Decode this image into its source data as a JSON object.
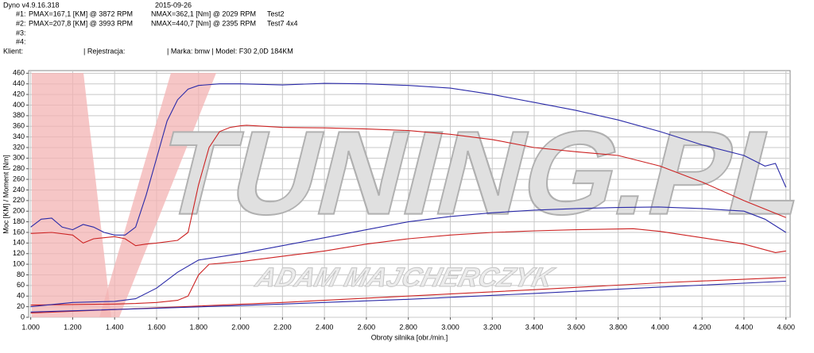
{
  "chart_data": {
    "type": "line",
    "header": {
      "app": "Dyno v4.9.16.318",
      "date": "2015-09-26",
      "runs": [
        {
          "id": "#1:",
          "pmax": "PMAX=167,1 [KM] @ 3872 RPM",
          "nmax": "NMAX=362,1 [Nm] @ 2029 RPM",
          "name": "Test2"
        },
        {
          "id": "#2:",
          "pmax": "PMAX=207,8 [KM] @ 3993 RPM",
          "nmax": "NMAX=440,7 [Nm] @ 2395 RPM",
          "name": "Test7  4x4"
        },
        {
          "id": "#3:"
        },
        {
          "id": "#4:"
        }
      ],
      "client": "Klient:",
      "registration": "| Rejestracja:",
      "vehicle": "| Marka:  bmw | Model:  F30 2,0D 184KM"
    },
    "watermark": "TUNING.PL",
    "watermark_sub": "ADAM MAJCHERCZYK",
    "x_label": "Obroty silnika [obr./min.]",
    "y_label": "Moc [KM] / Moment [Nm]",
    "xlim": [
      990,
      4620
    ],
    "ylim": [
      0,
      465
    ],
    "grid": true,
    "xticks": [
      {
        "value": 1000,
        "label": "1.000"
      },
      {
        "value": 1200,
        "label": "1.200"
      },
      {
        "value": 1400,
        "label": "1.400"
      },
      {
        "value": 1600,
        "label": "1.600"
      },
      {
        "value": 1800,
        "label": "1.800"
      },
      {
        "value": 2000,
        "label": "2.000"
      },
      {
        "value": 2200,
        "label": "2.200"
      },
      {
        "value": 2400,
        "label": "2.400"
      },
      {
        "value": 2600,
        "label": "2.600"
      },
      {
        "value": 2800,
        "label": "2.800"
      },
      {
        "value": 3000,
        "label": "3.000"
      },
      {
        "value": 3200,
        "label": "3.200"
      },
      {
        "value": 3400,
        "label": "3.400"
      },
      {
        "value": 3600,
        "label": "3.600"
      },
      {
        "value": 3800,
        "label": "3.800"
      },
      {
        "value": 4000,
        "label": "4.000"
      },
      {
        "value": 4200,
        "label": "4.200"
      },
      {
        "value": 4400,
        "label": "4.400"
      },
      {
        "value": 4600,
        "label": "4.600"
      }
    ],
    "yticks": [
      0,
      20,
      40,
      60,
      80,
      100,
      120,
      140,
      160,
      180,
      200,
      220,
      240,
      260,
      280,
      300,
      320,
      340,
      360,
      380,
      400,
      420,
      440,
      460
    ],
    "series": [
      {
        "color": "#cc2222",
        "x": [
          1000,
          1100,
          1200,
          1250,
          1300,
          1400,
          1450,
          1500,
          1550,
          1600,
          1700,
          1750,
          1800,
          1850,
          1900,
          1950,
          2000,
          2029,
          2200,
          2400,
          2600,
          2800,
          3000,
          3200,
          3400,
          3600,
          3800,
          4000,
          4200,
          4400,
          4600
        ],
        "values": [
          158,
          160,
          155,
          140,
          148,
          152,
          148,
          135,
          138,
          140,
          145,
          160,
          250,
          320,
          350,
          358,
          361,
          362,
          358,
          357,
          355,
          352,
          345,
          335,
          320,
          312,
          305,
          285,
          255,
          220,
          188
        ]
      },
      {
        "color": "#2a2aa8",
        "x": [
          1000,
          1050,
          1100,
          1150,
          1200,
          1250,
          1300,
          1350,
          1400,
          1450,
          1500,
          1550,
          1600,
          1650,
          1700,
          1750,
          1800,
          1900,
          2000,
          2200,
          2400,
          2600,
          2800,
          3000,
          3200,
          3400,
          3600,
          3800,
          4000,
          4200,
          4400,
          4500,
          4550,
          4600
        ],
        "values": [
          170,
          185,
          187,
          170,
          165,
          175,
          170,
          160,
          155,
          155,
          170,
          230,
          300,
          370,
          410,
          430,
          437,
          440,
          440,
          438,
          441,
          440,
          437,
          432,
          420,
          405,
          390,
          372,
          350,
          325,
          305,
          285,
          290,
          245
        ]
      },
      {
        "color": "#cc2222",
        "x": [
          1000,
          1200,
          1400,
          1500,
          1600,
          1700,
          1750,
          1800,
          1850,
          2000,
          2200,
          2400,
          2600,
          2800,
          3000,
          3200,
          3400,
          3600,
          3872,
          4000,
          4200,
          4400,
          4550,
          4600
        ],
        "values": [
          23,
          24,
          25,
          26,
          28,
          32,
          40,
          80,
          100,
          105,
          115,
          125,
          138,
          148,
          155,
          160,
          163,
          165,
          167,
          162,
          150,
          138,
          122,
          125
        ]
      },
      {
        "color": "#2a2aa8",
        "x": [
          1000,
          1200,
          1400,
          1500,
          1600,
          1700,
          1800,
          2000,
          2200,
          2400,
          2600,
          2800,
          3000,
          3200,
          3400,
          3600,
          3800,
          3993,
          4200,
          4400,
          4500,
          4600
        ],
        "values": [
          20,
          28,
          30,
          35,
          55,
          85,
          108,
          120,
          135,
          150,
          165,
          180,
          190,
          197,
          202,
          205,
          207,
          208,
          205,
          200,
          185,
          160
        ]
      },
      {
        "color": "#cc2222",
        "x": [
          1000,
          1600,
          2200,
          2800,
          3400,
          4000,
          4600
        ],
        "values": [
          8,
          18,
          28,
          40,
          52,
          65,
          75
        ]
      },
      {
        "color": "#2a2aa8",
        "x": [
          1000,
          1600,
          2200,
          2800,
          3400,
          4000,
          4600
        ],
        "values": [
          10,
          17,
          25,
          34,
          45,
          57,
          68
        ]
      }
    ]
  }
}
